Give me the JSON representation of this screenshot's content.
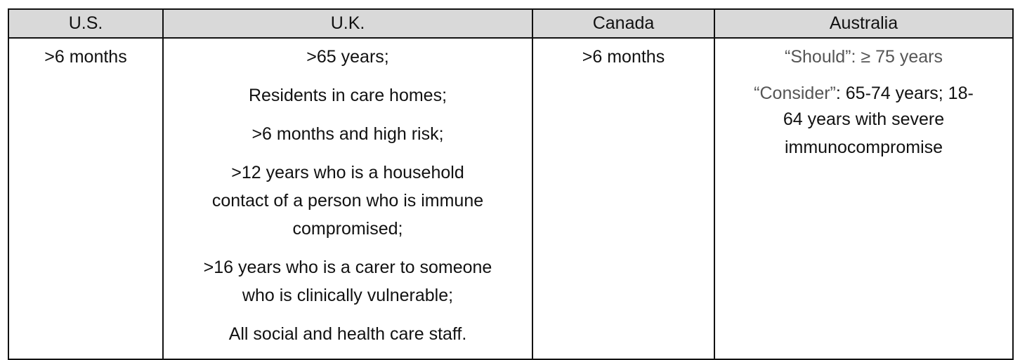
{
  "headers": [
    "U.S.",
    "U.K.",
    "Canada",
    "Australia"
  ],
  "us": {
    "text": ">6 months"
  },
  "uk": {
    "paragraphs": [
      [
        ">65 years;"
      ],
      [
        "Residents in care homes;"
      ],
      [
        ">6 months and high risk;"
      ],
      [
        ">12 years who is a household",
        "contact of a person who is immune",
        "compromised;"
      ],
      [
        ">16 years who is a carer to someone",
        "who is clinically vulnerable;"
      ],
      [
        "All social and health care staff."
      ]
    ]
  },
  "canada": {
    "text": ">6 months"
  },
  "australia": {
    "should_label": "“Should”",
    "should_text": ": ≥ 75 years",
    "consider_label": "“Consider”",
    "consider_lines": [
      ": 65-74 years; 18-",
      "64 years with severe",
      "immunocompromise"
    ]
  },
  "colors": {
    "header_bg": "#d9d9d9",
    "gray_text": "#555555"
  }
}
